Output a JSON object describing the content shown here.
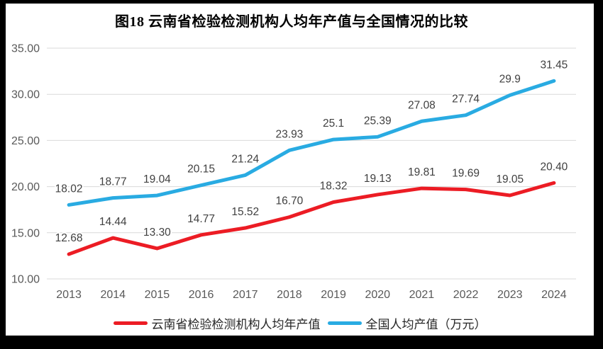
{
  "frame": {
    "background": "#000000",
    "panel_background": "#FFFFFF"
  },
  "chart_data": {
    "type": "line",
    "title": "图18  云南省检验检测机构人均年产值与全国情况的比较",
    "categories": [
      "2013",
      "2014",
      "2015",
      "2016",
      "2017",
      "2018",
      "2019",
      "2020",
      "2021",
      "2022",
      "2023",
      "2024"
    ],
    "series": [
      {
        "name": "云南省检验检测机构人均年产值",
        "color": "#EC1C24",
        "values": [
          12.68,
          14.44,
          13.3,
          14.77,
          15.52,
          16.7,
          18.32,
          19.13,
          19.81,
          19.69,
          19.05,
          20.4
        ],
        "labels": [
          "12.68",
          "14.44",
          "13.30",
          "14.77",
          "15.52",
          "16.70",
          "18.32",
          "19.13",
          "19.81",
          "19.69",
          "19.05",
          "20.40"
        ]
      },
      {
        "name": "全国人均产值（万元）",
        "color": "#29ABE2",
        "values": [
          18.02,
          18.77,
          19.04,
          20.15,
          21.24,
          23.93,
          25.1,
          25.39,
          27.08,
          27.74,
          29.9,
          31.45
        ],
        "labels": [
          "18.02",
          "18.77",
          "19.04",
          "20.15",
          "21.24",
          "23.93",
          "25.1",
          "25.39",
          "27.08",
          "27.74",
          "29.9",
          "31.45"
        ]
      }
    ],
    "xlabel": "",
    "ylabel": "",
    "ylim": [
      10,
      35
    ],
    "ytick_step": 5,
    "ytick_labels": [
      "10.00",
      "15.00",
      "20.00",
      "25.00",
      "30.00",
      "35.00"
    ],
    "grid": true,
    "legend_position": "bottom",
    "styles": {
      "gridline_color": "#D9D9D9",
      "tick_label_color": "#595959",
      "data_label_color": "#404040",
      "title_color": "#1A1A1A",
      "line_width": 5
    }
  }
}
